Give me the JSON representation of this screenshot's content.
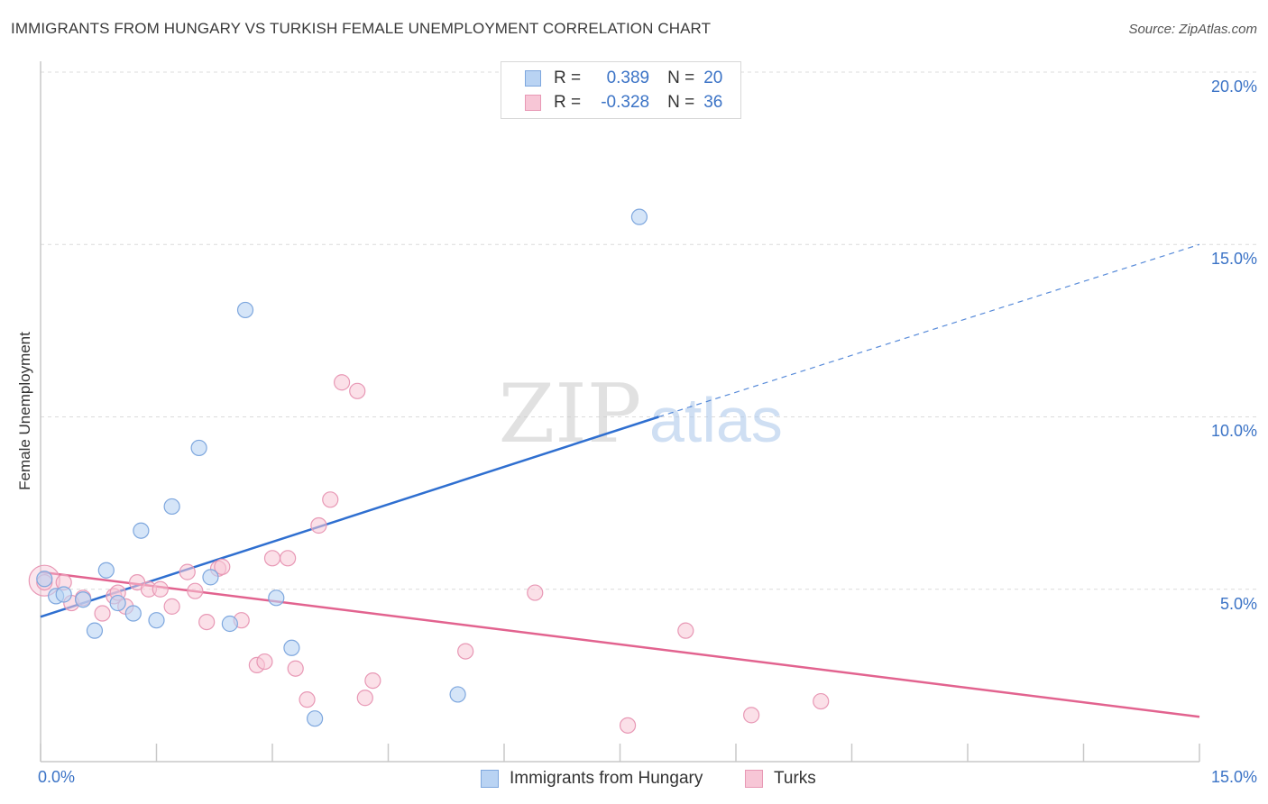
{
  "title": "IMMIGRANTS FROM HUNGARY VS TURKISH FEMALE UNEMPLOYMENT CORRELATION CHART",
  "source": "Source: ZipAtlas.com",
  "watermark": {
    "zip": "ZIP",
    "atlas": "atlas"
  },
  "legend": {
    "r_label": "R =",
    "n_label": "N =",
    "hungary": {
      "r": "0.389",
      "n": "20"
    },
    "turks": {
      "r": "-0.328",
      "n": "36"
    }
  },
  "colors": {
    "hungary_fill": "#b9d3f3",
    "hungary_stroke": "#7ea7de",
    "hungary_line": "#2f6fd0",
    "turks_fill": "#f7c6d6",
    "turks_stroke": "#e898b5",
    "turks_line": "#e2638f",
    "tick_text": "#3b73c6"
  },
  "chart_data": {
    "type": "scatter",
    "title": "IMMIGRANTS FROM HUNGARY VS TURKISH FEMALE UNEMPLOYMENT CORRELATION CHART",
    "xlabel": "",
    "ylabel": "Female Unemployment",
    "xlim": [
      0,
      15
    ],
    "ylim": [
      0,
      20
    ],
    "x_tick_labels": [
      "0.0%",
      "15.0%"
    ],
    "y_tick_labels": [
      "5.0%",
      "10.0%",
      "15.0%",
      "20.0%"
    ],
    "y_ticks": [
      5,
      10,
      15,
      20
    ],
    "grid": true,
    "series": [
      {
        "name": "Immigrants from Hungary",
        "points": [
          {
            "x": 0.05,
            "y": 5.3
          },
          {
            "x": 0.2,
            "y": 4.8
          },
          {
            "x": 0.3,
            "y": 4.85
          },
          {
            "x": 0.55,
            "y": 4.7
          },
          {
            "x": 0.7,
            "y": 3.8
          },
          {
            "x": 0.85,
            "y": 5.55
          },
          {
            "x": 1.0,
            "y": 4.6
          },
          {
            "x": 1.2,
            "y": 4.3
          },
          {
            "x": 1.3,
            "y": 6.7
          },
          {
            "x": 1.5,
            "y": 4.1
          },
          {
            "x": 1.7,
            "y": 7.4
          },
          {
            "x": 2.05,
            "y": 9.1
          },
          {
            "x": 2.2,
            "y": 5.35
          },
          {
            "x": 2.45,
            "y": 4.0
          },
          {
            "x": 2.65,
            "y": 13.1
          },
          {
            "x": 3.05,
            "y": 4.75
          },
          {
            "x": 3.25,
            "y": 3.3
          },
          {
            "x": 3.55,
            "y": 1.25
          },
          {
            "x": 5.4,
            "y": 1.95
          },
          {
            "x": 7.75,
            "y": 15.8
          }
        ],
        "trend": {
          "x": [
            0,
            8
          ],
          "y": [
            4.2,
            10.0
          ],
          "dashed_extension": {
            "x": [
              8,
              15
            ],
            "y": [
              10.0,
              15.0
            ]
          }
        }
      },
      {
        "name": "Turks",
        "points": [
          {
            "x": 0.05,
            "y": 5.2
          },
          {
            "x": 0.3,
            "y": 5.2
          },
          {
            "x": 0.4,
            "y": 4.6
          },
          {
            "x": 0.55,
            "y": 4.75
          },
          {
            "x": 0.8,
            "y": 4.3
          },
          {
            "x": 0.95,
            "y": 4.8
          },
          {
            "x": 1.0,
            "y": 4.9
          },
          {
            "x": 1.1,
            "y": 4.5
          },
          {
            "x": 1.25,
            "y": 5.2
          },
          {
            "x": 1.4,
            "y": 5.0
          },
          {
            "x": 1.55,
            "y": 5.0
          },
          {
            "x": 1.7,
            "y": 4.5
          },
          {
            "x": 1.9,
            "y": 5.5
          },
          {
            "x": 2.0,
            "y": 4.95
          },
          {
            "x": 2.15,
            "y": 4.05
          },
          {
            "x": 2.3,
            "y": 5.6
          },
          {
            "x": 2.35,
            "y": 5.65
          },
          {
            "x": 2.6,
            "y": 4.1
          },
          {
            "x": 2.8,
            "y": 2.8
          },
          {
            "x": 2.9,
            "y": 2.9
          },
          {
            "x": 3.0,
            "y": 5.9
          },
          {
            "x": 3.2,
            "y": 5.9
          },
          {
            "x": 3.3,
            "y": 2.7
          },
          {
            "x": 3.45,
            "y": 1.8
          },
          {
            "x": 3.6,
            "y": 6.85
          },
          {
            "x": 3.75,
            "y": 7.6
          },
          {
            "x": 3.9,
            "y": 11.0
          },
          {
            "x": 4.1,
            "y": 10.75
          },
          {
            "x": 4.2,
            "y": 1.85
          },
          {
            "x": 4.3,
            "y": 2.35
          },
          {
            "x": 5.5,
            "y": 3.2
          },
          {
            "x": 6.4,
            "y": 4.9
          },
          {
            "x": 7.6,
            "y": 1.05
          },
          {
            "x": 8.35,
            "y": 3.8
          },
          {
            "x": 9.2,
            "y": 1.35
          },
          {
            "x": 10.1,
            "y": 1.75
          }
        ],
        "trend": {
          "x": [
            0,
            15
          ],
          "y": [
            5.5,
            1.3
          ]
        }
      }
    ]
  }
}
